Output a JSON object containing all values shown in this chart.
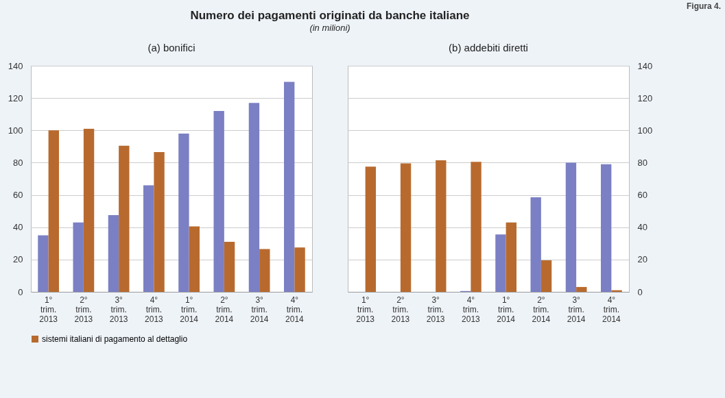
{
  "chart_data": [
    {
      "type": "bar",
      "title": "Numero dei pagamenti originati da banche italiane",
      "subtitle": "(in milioni)",
      "annotations": [
        "Figura 4."
      ],
      "xlabel": "(a) bonifici",
      "categories": [
        "1° trim. 2013",
        "2° trim. 2013",
        "3° trim. 2013",
        "4° trim. 2013",
        "1° trim. 2014",
        "2° trim. 2014",
        "3° trim. 2014",
        "4° trim. 2014"
      ],
      "series": [
        {
          "color": "#7b80c4",
          "values": [
            35,
            43,
            47.5,
            66,
            98,
            112,
            117,
            130
          ]
        },
        {
          "name": "sistemi italiani di pagamento al dettaglio",
          "color": "#b86a2e",
          "values": [
            100,
            101,
            90.5,
            86.5,
            40.5,
            31,
            26.5,
            27.5
          ]
        }
      ],
      "ylim": [
        0,
        140
      ],
      "yticks": [
        0,
        20,
        40,
        60,
        80,
        100,
        120,
        140
      ],
      "grid": "y",
      "legend": "bottom"
    },
    {
      "type": "bar",
      "xlabel": "(b) addebiti diretti",
      "categories": [
        "1° trim. 2013",
        "2° trim. 2013",
        "3° trim. 2013",
        "4° trim. 2013",
        "1° trim. 2014",
        "2° trim. 2014",
        "3° trim. 2014",
        "4° trim. 2014"
      ],
      "series": [
        {
          "color": "#7b80c4",
          "values": [
            0,
            0,
            0,
            0.5,
            35.5,
            58.5,
            80,
            79
          ]
        },
        {
          "color": "#b86a2e",
          "values": [
            77.5,
            79.5,
            81.5,
            80.5,
            43,
            19.5,
            3,
            1
          ]
        }
      ],
      "ylim": [
        0,
        140
      ],
      "yticks": [
        0,
        20,
        40,
        60,
        80,
        100,
        120,
        140
      ],
      "grid": "y"
    }
  ]
}
